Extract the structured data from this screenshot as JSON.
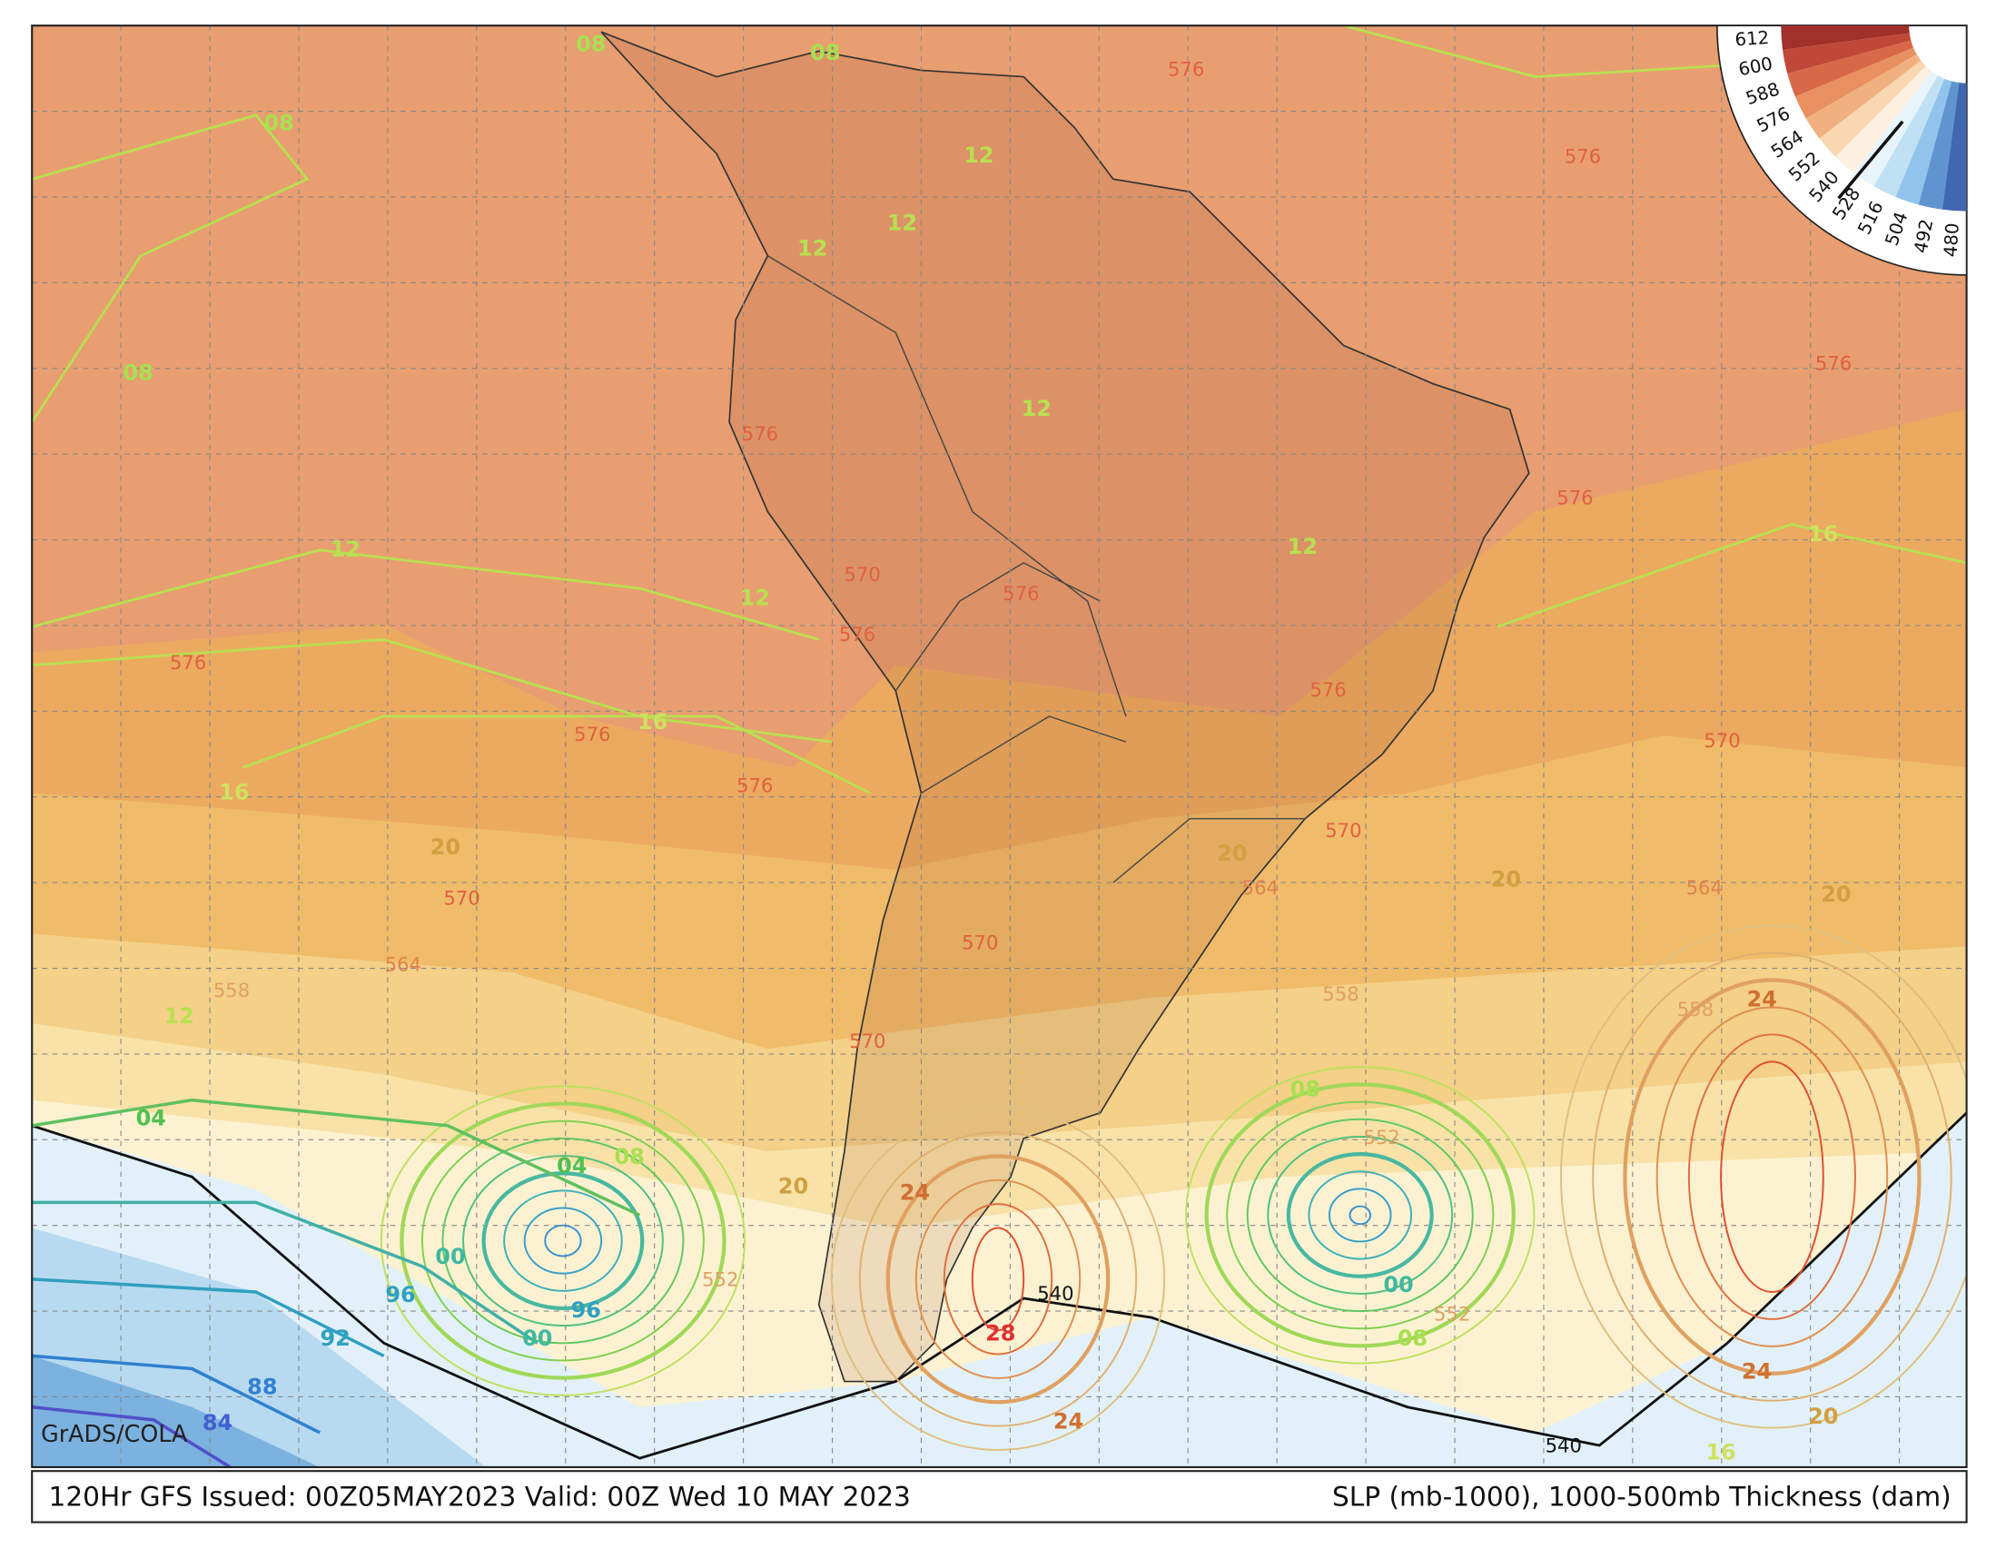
{
  "map": {
    "title_left": "120Hr GFS Issued: 00Z05MAY2023 Valid: 00Z Wed 10 MAY 2023",
    "title_right": "SLP (mb-1000), 1000-500mb Thickness (dam)",
    "credit": "GrADS/COLA",
    "colorbar_labels": [
      "612",
      "600",
      "588",
      "576",
      "564",
      "552",
      "540",
      "528",
      "516",
      "504",
      "492",
      "480"
    ],
    "contour_labels": [
      "08",
      "08",
      "08",
      "08",
      "12",
      "12",
      "12",
      "12",
      "12",
      "12",
      "12",
      "16",
      "16",
      "16",
      "20",
      "20",
      "20",
      "20",
      "20",
      "20",
      "24",
      "24",
      "24",
      "24",
      "28",
      "04",
      "04",
      "08",
      "08",
      "08",
      "00",
      "00",
      "00",
      "96",
      "96",
      "92",
      "88",
      "84",
      "12",
      "16",
      "540",
      "540",
      "576",
      "576",
      "576",
      "576",
      "576",
      "576",
      "570",
      "576",
      "576",
      "576",
      "576",
      "576",
      "570",
      "570",
      "570",
      "570",
      "570",
      "564",
      "564",
      "564",
      "558",
      "558",
      "558",
      "552",
      "552",
      "552"
    ]
  }
}
